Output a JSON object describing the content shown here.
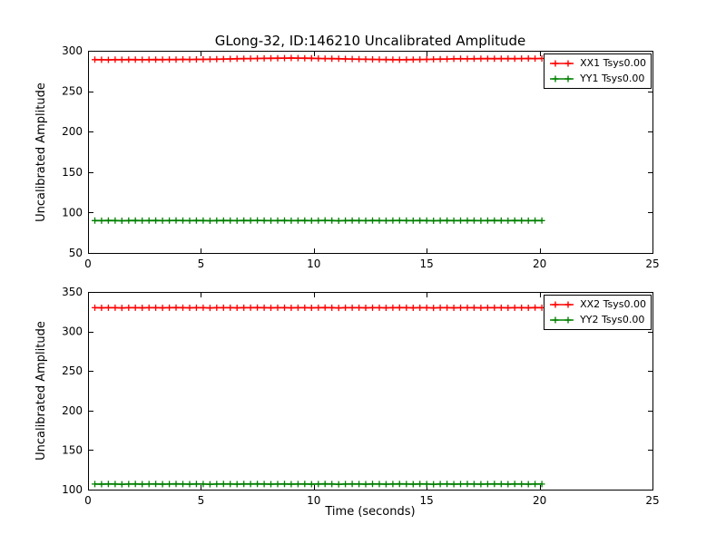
{
  "figure": {
    "title": "GLong-32, ID:146210 Uncalibrated Amplitude",
    "xlabel": "Time (seconds)",
    "background_color": "#ffffff",
    "axis_color": "#000000"
  },
  "chart_data": [
    {
      "type": "line",
      "subplot": "top",
      "ylabel": "Uncalibrated Amplitude",
      "xlim": [
        0,
        25
      ],
      "ylim": [
        50,
        300
      ],
      "xticks": [
        0,
        5,
        10,
        15,
        20,
        25
      ],
      "yticks": [
        50,
        100,
        150,
        200,
        250,
        300
      ],
      "grid": false,
      "legend_position": "upper right",
      "x": [
        0.3,
        0.6,
        0.9,
        1.2,
        1.5,
        1.8,
        2.1,
        2.4,
        2.7,
        3.0,
        3.3,
        3.6,
        3.9,
        4.2,
        4.5,
        4.8,
        5.1,
        5.4,
        5.7,
        6.0,
        6.3,
        6.6,
        6.9,
        7.2,
        7.5,
        7.8,
        8.1,
        8.4,
        8.7,
        9.0,
        9.3,
        9.6,
        9.9,
        10.2,
        10.5,
        10.8,
        11.1,
        11.4,
        11.7,
        12.0,
        12.3,
        12.6,
        12.9,
        13.2,
        13.5,
        13.8,
        14.1,
        14.4,
        14.7,
        15.0,
        15.3,
        15.6,
        15.9,
        16.2,
        16.5,
        16.8,
        17.1,
        17.4,
        17.7,
        18.0,
        18.3,
        18.6,
        18.9,
        19.2,
        19.5,
        19.8,
        20.1
      ],
      "series": [
        {
          "name": "XX1 Tsys0.00",
          "color": "#ff0000",
          "marker": "+",
          "values": [
            289.0,
            288.9,
            288.8,
            289.0,
            288.9,
            289.1,
            289.0,
            288.9,
            289.0,
            289.1,
            289.0,
            289.2,
            289.1,
            289.3,
            289.2,
            289.4,
            289.3,
            289.5,
            289.6,
            289.8,
            289.9,
            290.1,
            290.2,
            290.4,
            290.5,
            290.6,
            290.7,
            290.8,
            290.9,
            291.0,
            290.9,
            290.8,
            290.7,
            290.5,
            290.4,
            290.2,
            290.1,
            289.9,
            289.8,
            289.6,
            289.5,
            289.3,
            289.2,
            289.1,
            289.0,
            288.9,
            289.0,
            289.1,
            289.2,
            289.4,
            289.5,
            289.7,
            289.8,
            290.0,
            290.1,
            290.0,
            290.1,
            290.2,
            290.2,
            290.3,
            290.3,
            290.4,
            290.3,
            290.4,
            290.5,
            290.4,
            290.5
          ]
        },
        {
          "name": "YY1 Tsys0.00",
          "color": "#008000",
          "marker": "+",
          "values": [
            90.0,
            89.9,
            90.1,
            90.0,
            89.8,
            90.0,
            90.1,
            89.9,
            90.0,
            90.1,
            89.9,
            90.0,
            90.2,
            90.0,
            89.9,
            90.1,
            90.0,
            89.8,
            90.0,
            90.1,
            90.0,
            89.9,
            90.1,
            90.0,
            90.2,
            90.0,
            89.9,
            90.0,
            90.1,
            89.9,
            90.0,
            90.1,
            89.9,
            90.0,
            90.2,
            90.0,
            89.8,
            90.0,
            90.1,
            90.0,
            89.9,
            90.1,
            90.0,
            89.9,
            90.0,
            90.2,
            90.0,
            89.9,
            90.1,
            90.0,
            89.8,
            90.0,
            90.1,
            89.9,
            90.0,
            90.1,
            90.0,
            89.9,
            90.0,
            90.1,
            90.0,
            89.9,
            90.1,
            90.0,
            89.9,
            90.0,
            90.0
          ]
        }
      ]
    },
    {
      "type": "line",
      "subplot": "bottom",
      "ylabel": "Uncalibrated Amplitude",
      "xlim": [
        0,
        25
      ],
      "ylim": [
        100,
        350
      ],
      "xticks": [
        0,
        5,
        10,
        15,
        20,
        25
      ],
      "yticks": [
        100,
        150,
        200,
        250,
        300,
        350
      ],
      "grid": false,
      "legend_position": "upper right",
      "x": [
        0.3,
        0.6,
        0.9,
        1.2,
        1.5,
        1.8,
        2.1,
        2.4,
        2.7,
        3.0,
        3.3,
        3.6,
        3.9,
        4.2,
        4.5,
        4.8,
        5.1,
        5.4,
        5.7,
        6.0,
        6.3,
        6.6,
        6.9,
        7.2,
        7.5,
        7.8,
        8.1,
        8.4,
        8.7,
        9.0,
        9.3,
        9.6,
        9.9,
        10.2,
        10.5,
        10.8,
        11.1,
        11.4,
        11.7,
        12.0,
        12.3,
        12.6,
        12.9,
        13.2,
        13.5,
        13.8,
        14.1,
        14.4,
        14.7,
        15.0,
        15.3,
        15.6,
        15.9,
        16.2,
        16.5,
        16.8,
        17.1,
        17.4,
        17.7,
        18.0,
        18.3,
        18.6,
        18.9,
        19.2,
        19.5,
        19.8,
        20.1
      ],
      "series": [
        {
          "name": "XX2 Tsys0.00",
          "color": "#ff0000",
          "marker": "+",
          "values": [
            330.0,
            329.9,
            330.1,
            330.0,
            329.8,
            330.0,
            330.1,
            329.9,
            330.0,
            330.1,
            329.9,
            330.0,
            330.2,
            330.0,
            329.9,
            330.1,
            330.0,
            329.8,
            330.0,
            330.1,
            330.0,
            329.9,
            330.1,
            330.0,
            330.2,
            330.0,
            329.9,
            330.0,
            330.1,
            329.9,
            330.0,
            330.1,
            329.9,
            330.0,
            330.2,
            330.0,
            329.8,
            330.0,
            330.1,
            330.0,
            329.9,
            330.1,
            330.0,
            329.9,
            330.0,
            330.2,
            330.0,
            329.9,
            330.1,
            330.0,
            329.8,
            330.0,
            330.1,
            329.9,
            330.0,
            330.1,
            330.0,
            329.9,
            330.0,
            330.1,
            330.0,
            329.9,
            330.1,
            330.0,
            329.9,
            330.2,
            330.0
          ]
        },
        {
          "name": "YY2 Tsys0.00",
          "color": "#008000",
          "marker": "+",
          "values": [
            107.0,
            106.9,
            107.1,
            107.0,
            106.8,
            107.0,
            107.1,
            106.9,
            107.0,
            107.1,
            106.9,
            107.0,
            107.2,
            107.0,
            106.9,
            107.1,
            107.0,
            106.8,
            107.0,
            107.1,
            107.0,
            106.9,
            107.1,
            107.0,
            107.2,
            107.0,
            106.9,
            107.0,
            107.1,
            106.9,
            107.0,
            107.1,
            106.9,
            107.0,
            107.2,
            107.0,
            106.8,
            107.0,
            107.1,
            107.0,
            106.9,
            107.1,
            107.0,
            106.9,
            107.0,
            107.2,
            107.0,
            106.9,
            107.1,
            107.0,
            106.8,
            107.0,
            107.1,
            106.9,
            107.0,
            107.1,
            107.0,
            106.9,
            107.0,
            107.1,
            107.0,
            106.9,
            107.1,
            107.0,
            106.9,
            107.0,
            107.0
          ]
        }
      ]
    }
  ]
}
